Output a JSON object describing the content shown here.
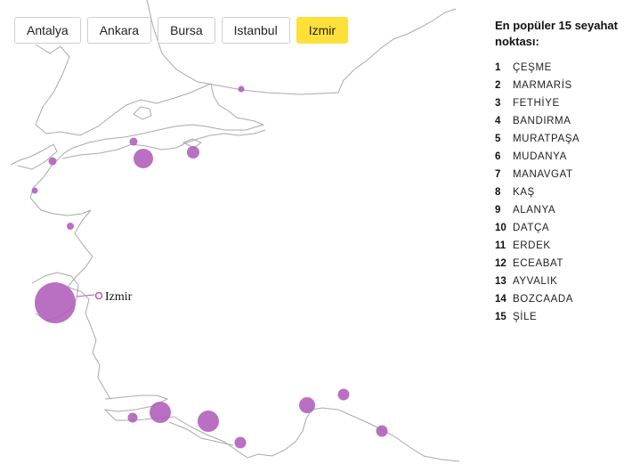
{
  "tabs": [
    {
      "label": "Antalya",
      "active": false
    },
    {
      "label": "Ankara",
      "active": false
    },
    {
      "label": "Bursa",
      "active": false
    },
    {
      "label": "Istanbul",
      "active": false
    },
    {
      "label": "Izmir",
      "active": true
    }
  ],
  "map": {
    "selected_city": "Izmir",
    "colors": {
      "bubble": "#b05cba",
      "coastline": "#a9a9a9",
      "active_tab": "#fde03a"
    },
    "bubble_count": 15
  },
  "panel": {
    "title": "En popüler 15 seyahat noktası:",
    "items": [
      {
        "rank": "1",
        "name": "ÇEŞME"
      },
      {
        "rank": "2",
        "name": "MARMARİS"
      },
      {
        "rank": "3",
        "name": "FETHİYE"
      },
      {
        "rank": "4",
        "name": "BANDIRMA"
      },
      {
        "rank": "5",
        "name": "MURATPAŞA"
      },
      {
        "rank": "6",
        "name": "MUDANYA"
      },
      {
        "rank": "7",
        "name": "MANAVGAT"
      },
      {
        "rank": "8",
        "name": "KAŞ"
      },
      {
        "rank": "9",
        "name": "ALANYA"
      },
      {
        "rank": "10",
        "name": "DATÇA"
      },
      {
        "rank": "11",
        "name": "ERDEK"
      },
      {
        "rank": "12",
        "name": "ECEABAT"
      },
      {
        "rank": "13",
        "name": "AYVALIK"
      },
      {
        "rank": "14",
        "name": "BOZCAADA"
      },
      {
        "rank": "15",
        "name": "ŞİLE"
      }
    ]
  }
}
